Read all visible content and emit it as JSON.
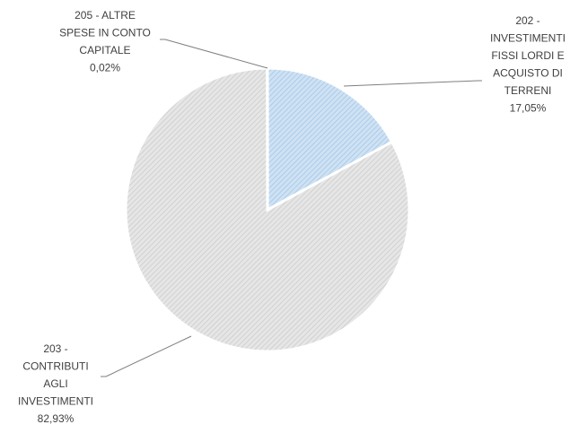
{
  "chart_data": {
    "type": "pie",
    "title": "",
    "slices": [
      {
        "label_lines": [
          "202 -",
          "INVESTIMENTI",
          "FISSI LORDI E",
          "ACQUISTO DI",
          "TERRENI"
        ],
        "value": 17.05,
        "percent_label": "17,05%",
        "color": "#bdd7ee"
      },
      {
        "label_lines": [
          "203 -",
          "CONTRIBUTI",
          "AGLI",
          "INVESTIMENTI"
        ],
        "value": 82.93,
        "percent_label": "82,93%",
        "color": "#d9d9d9"
      },
      {
        "label_lines": [
          "205 - ALTRE",
          "SPESE IN CONTO",
          "CAPITALE"
        ],
        "value": 0.02,
        "percent_label": "0,02%",
        "color": "#d9d9d9"
      }
    ],
    "legend": "none",
    "labels": "outside with leader lines"
  }
}
